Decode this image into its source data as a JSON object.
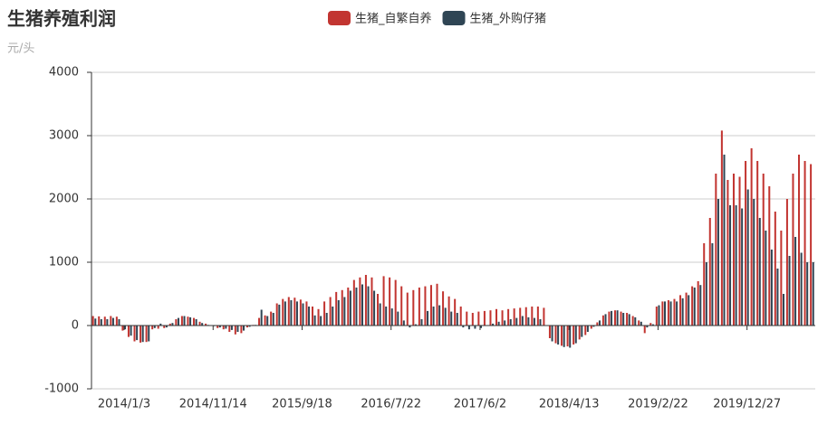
{
  "chart_data": {
    "type": "bar",
    "title": "生猪养殖利润",
    "subtitle": "元/头",
    "categories": [
      null,
      null,
      null,
      null,
      null,
      "2014/1/3",
      null,
      null,
      null,
      null,
      null,
      null,
      null,
      null,
      null,
      null,
      null,
      null,
      null,
      null,
      "2014/11/14",
      null,
      null,
      null,
      null,
      null,
      null,
      null,
      null,
      null,
      null,
      null,
      null,
      null,
      null,
      "2015/9/18",
      null,
      null,
      null,
      null,
      null,
      null,
      null,
      null,
      null,
      null,
      null,
      null,
      null,
      null,
      "2016/7/22",
      null,
      null,
      null,
      null,
      null,
      null,
      null,
      null,
      null,
      null,
      null,
      null,
      null,
      null,
      "2017/6/2",
      null,
      null,
      null,
      null,
      null,
      null,
      null,
      null,
      null,
      null,
      null,
      null,
      null,
      null,
      "2018/4/13",
      null,
      null,
      null,
      null,
      null,
      null,
      null,
      null,
      null,
      null,
      null,
      null,
      null,
      null,
      "2019/2/22",
      null,
      null,
      null,
      null,
      null,
      null,
      null,
      null,
      null,
      null,
      null,
      null,
      null,
      null,
      "2019/12/27",
      null,
      null,
      null,
      null,
      null,
      null,
      null,
      null,
      null,
      null,
      null
    ],
    "series": [
      {
        "name": "生猪_自繁自养",
        "color": "#c23531",
        "values": [
          150,
          145,
          140,
          150,
          140,
          -80,
          -180,
          -250,
          -270,
          -260,
          -60,
          -50,
          -40,
          30,
          100,
          150,
          140,
          120,
          60,
          30,
          0,
          -40,
          -60,
          -100,
          -140,
          -120,
          -30,
          10,
          120,
          160,
          220,
          350,
          420,
          450,
          440,
          410,
          380,
          300,
          260,
          380,
          450,
          530,
          560,
          600,
          720,
          760,
          800,
          760,
          500,
          780,
          760,
          720,
          620,
          520,
          560,
          600,
          620,
          640,
          660,
          540,
          460,
          420,
          300,
          220,
          200,
          220,
          230,
          240,
          260,
          240,
          260,
          270,
          280,
          290,
          300,
          300,
          280,
          -200,
          -280,
          -320,
          -330,
          -300,
          -220,
          -150,
          -50,
          50,
          160,
          220,
          240,
          220,
          200,
          150,
          80,
          -120,
          40,
          300,
          380,
          400,
          420,
          480,
          520,
          620,
          700,
          1300,
          1700,
          2400,
          3080,
          2300,
          2400,
          2350,
          2600,
          2800,
          2600,
          2400,
          2200,
          1800,
          1500,
          2000,
          2400,
          2700,
          2600,
          2550
        ]
      },
      {
        "name": "生猪_外购仔猪",
        "color": "#2f4554",
        "values": [
          110,
          100,
          100,
          120,
          100,
          -60,
          -160,
          -230,
          -260,
          -250,
          -40,
          30,
          -30,
          40,
          120,
          150,
          130,
          100,
          40,
          10,
          -10,
          -30,
          -50,
          -70,
          -100,
          -80,
          -20,
          10,
          250,
          150,
          200,
          330,
          380,
          400,
          380,
          350,
          300,
          160,
          150,
          200,
          300,
          400,
          450,
          550,
          600,
          650,
          620,
          550,
          350,
          300,
          270,
          220,
          80,
          -30,
          20,
          100,
          230,
          300,
          320,
          280,
          220,
          200,
          -30,
          -60,
          -50,
          -40,
          0,
          30,
          60,
          80,
          100,
          120,
          150,
          130,
          120,
          100,
          0,
          -250,
          -300,
          -340,
          -350,
          -280,
          -180,
          -100,
          -20,
          80,
          180,
          230,
          240,
          200,
          180,
          130,
          60,
          -30,
          20,
          320,
          380,
          380,
          380,
          430,
          480,
          600,
          640,
          1000,
          1300,
          2000,
          2700,
          1900,
          1900,
          1850,
          2150,
          2000,
          1700,
          1500,
          1200,
          900,
          500,
          1100,
          1400,
          1150,
          1000,
          1000
        ]
      }
    ],
    "ylim": [
      -1000,
      4000
    ],
    "yticks": [
      -1000,
      0,
      1000,
      2000,
      3000,
      4000
    ],
    "grid": true
  }
}
